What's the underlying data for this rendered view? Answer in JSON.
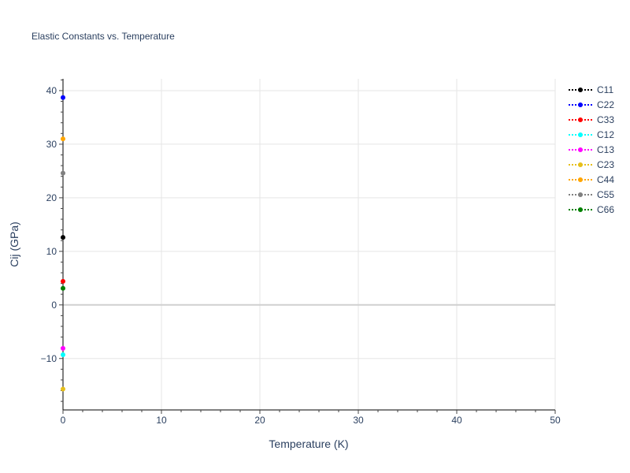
{
  "chart_data": {
    "type": "line",
    "title": "Elastic Constants vs. Temperature",
    "xlabel": "Temperature (K)",
    "ylabel": "Cij (GPa)",
    "xlim": [
      0,
      50
    ],
    "ylim": [
      -19.6,
      42.2
    ],
    "xticks": [
      0,
      10,
      20,
      30,
      40,
      50
    ],
    "yticks": [
      -10,
      0,
      10,
      20,
      30,
      40
    ],
    "grid": true,
    "legend_position": "right",
    "series": [
      {
        "name": "C11",
        "color": "#000000",
        "x": [
          0
        ],
        "y": [
          12.6
        ]
      },
      {
        "name": "C22",
        "color": "#0000ff",
        "x": [
          0
        ],
        "y": [
          38.7
        ]
      },
      {
        "name": "C33",
        "color": "#ff0000",
        "x": [
          0
        ],
        "y": [
          4.4
        ]
      },
      {
        "name": "C12",
        "color": "#00ffff",
        "x": [
          0
        ],
        "y": [
          -9.3
        ]
      },
      {
        "name": "C13",
        "color": "#ff00ff",
        "x": [
          0
        ],
        "y": [
          -8.1
        ]
      },
      {
        "name": "C23",
        "color": "#e6bf1a",
        "x": [
          0
        ],
        "y": [
          -15.7
        ]
      },
      {
        "name": "C44",
        "color": "#ffa500",
        "x": [
          0
        ],
        "y": [
          31.0
        ]
      },
      {
        "name": "C55",
        "color": "#808080",
        "x": [
          0
        ],
        "y": [
          24.6
        ]
      },
      {
        "name": "C66",
        "color": "#008000",
        "x": [
          0
        ],
        "y": [
          3.1
        ]
      }
    ]
  }
}
